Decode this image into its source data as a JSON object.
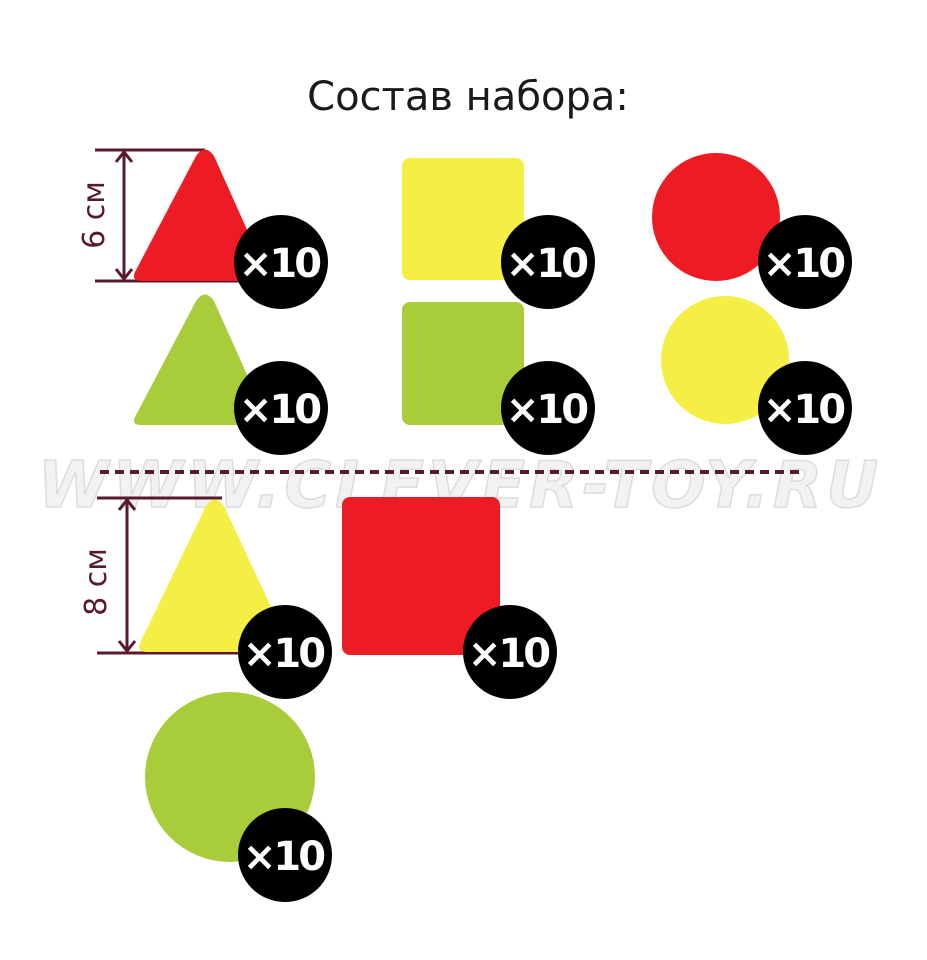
{
  "title": "Состав набора:",
  "watermark": "WWW.CLEVER-TOY.RU",
  "colors": {
    "red": "#ED1C24",
    "yellow": "#F5EE45",
    "green": "#A8CC3A",
    "dimension": "#5a1a2e",
    "badge": "#000000"
  },
  "sections": [
    {
      "size_label": "6 см",
      "items": [
        {
          "shape": "triangle",
          "color": "red",
          "count": "×10"
        },
        {
          "shape": "square",
          "color": "yellow",
          "count": "×10"
        },
        {
          "shape": "circle",
          "color": "red",
          "count": "×10"
        },
        {
          "shape": "triangle",
          "color": "green",
          "count": "×10"
        },
        {
          "shape": "square",
          "color": "green",
          "count": "×10"
        },
        {
          "shape": "circle",
          "color": "yellow",
          "count": "×10"
        }
      ]
    },
    {
      "size_label": "8 см",
      "items": [
        {
          "shape": "triangle",
          "color": "yellow",
          "count": "×10"
        },
        {
          "shape": "square",
          "color": "red",
          "count": "×10"
        },
        {
          "shape": "circle",
          "color": "green",
          "count": "×10"
        }
      ]
    }
  ]
}
